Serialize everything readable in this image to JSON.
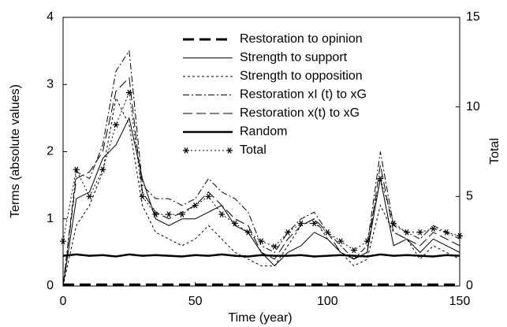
{
  "chart_data": {
    "type": "line",
    "xlabel": "Time (year)",
    "ylabel": "Terms (absolute values)",
    "y2label": "Total",
    "x": [
      0,
      5,
      10,
      15,
      20,
      25,
      30,
      35,
      40,
      45,
      50,
      55,
      60,
      65,
      70,
      75,
      80,
      85,
      90,
      95,
      100,
      105,
      110,
      115,
      120,
      125,
      130,
      135,
      140,
      145,
      150
    ],
    "series": [
      {
        "name": "Restoration to opinion",
        "color": "#000000",
        "width": 3,
        "dash": "14 7",
        "values": [
          0.02,
          0.02,
          0.02,
          0.02,
          0.02,
          0.02,
          0.02,
          0.02,
          0.02,
          0.02,
          0.02,
          0.02,
          0.02,
          0.02,
          0.02,
          0.02,
          0.02,
          0.02,
          0.02,
          0.02,
          0.02,
          0.02,
          0.02,
          0.02,
          0.02,
          0.02,
          0.02,
          0.02,
          0.02,
          0.02,
          0.02
        ]
      },
      {
        "name": "Strength to support",
        "color": "#000000",
        "width": 1,
        "dash": "none",
        "values": [
          0,
          1.3,
          1.4,
          1.9,
          2.1,
          2.5,
          1.6,
          1.0,
          0.9,
          1.0,
          1.0,
          1.1,
          1.2,
          0.9,
          0.8,
          0.5,
          0.3,
          0.5,
          0.6,
          0.8,
          0.7,
          0.5,
          0.4,
          0.5,
          1.6,
          0.6,
          0.7,
          0.5,
          0.7,
          0.6,
          0.5
        ]
      },
      {
        "name": "Strength to opposition",
        "color": "#000000",
        "width": 1,
        "dash": "3 3",
        "values": [
          0,
          0.9,
          1.2,
          1.7,
          2.8,
          2.4,
          1.2,
          0.8,
          0.7,
          0.6,
          0.7,
          0.9,
          0.7,
          0.5,
          0.4,
          0.3,
          0.3,
          0.6,
          0.9,
          1.0,
          0.7,
          0.5,
          0.3,
          0.4,
          1.2,
          0.8,
          0.7,
          0.4,
          0.6,
          0.5,
          0.4
        ]
      },
      {
        "name": "Restoration xI (t) to xG",
        "color": "#000000",
        "width": 1,
        "dash": "8 3 2 3",
        "values": [
          0,
          1.7,
          1.6,
          2.1,
          3.2,
          3.5,
          1.5,
          1.3,
          1.3,
          1.2,
          1.3,
          1.6,
          1.4,
          1.3,
          1.1,
          0.6,
          0.5,
          0.8,
          1.0,
          1.1,
          0.8,
          0.6,
          0.4,
          0.6,
          2.0,
          0.9,
          0.8,
          0.7,
          0.9,
          0.8,
          0.7
        ]
      },
      {
        "name": "Restoration x(t) to xG",
        "color": "#000000",
        "width": 1,
        "dash": "12 5",
        "values": [
          0,
          1.6,
          1.7,
          2.0,
          2.9,
          3.1,
          1.4,
          1.1,
          1.0,
          1.1,
          1.2,
          1.4,
          1.2,
          1.0,
          0.9,
          0.5,
          0.4,
          0.7,
          0.9,
          1.0,
          0.8,
          0.5,
          0.4,
          0.5,
          1.8,
          0.8,
          0.7,
          0.6,
          0.8,
          0.7,
          0.6
        ]
      },
      {
        "name": "Random",
        "color": "#000000",
        "width": 2.5,
        "dash": "none",
        "values": [
          0.45,
          0.47,
          0.45,
          0.46,
          0.44,
          0.47,
          0.45,
          0.46,
          0.45,
          0.44,
          0.46,
          0.45,
          0.47,
          0.45,
          0.44,
          0.46,
          0.45,
          0.45,
          0.46,
          0.44,
          0.45,
          0.46,
          0.45,
          0.44,
          0.47,
          0.45,
          0.46,
          0.45,
          0.44,
          0.46,
          0.45
        ]
      },
      {
        "name": "Total",
        "color": "#000000",
        "width": 1,
        "dash": "2 3",
        "axis": "y2",
        "marker": "asterisk",
        "values": [
          2.5,
          6.5,
          5,
          6.5,
          9,
          10.8,
          5,
          4,
          4,
          4,
          4.5,
          5,
          4,
          3.5,
          3,
          2.5,
          2.2,
          3,
          3.5,
          3.5,
          3,
          2.5,
          2,
          2.5,
          6,
          3.5,
          3,
          3,
          3.2,
          3,
          2.8
        ]
      }
    ],
    "xlim": [
      0,
      150
    ],
    "xticks": [
      0,
      50,
      100,
      150
    ],
    "ylim": [
      0,
      4
    ],
    "yticks": [
      0,
      1,
      2,
      3,
      4
    ],
    "y2lim": [
      0,
      15
    ],
    "y2ticks": [
      0,
      5,
      10,
      15
    ],
    "grid": false
  }
}
